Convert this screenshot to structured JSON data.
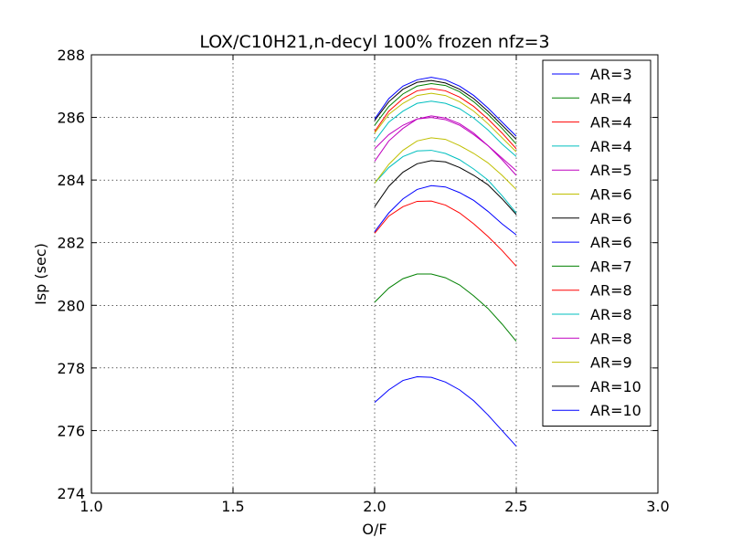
{
  "chart_data": {
    "type": "line",
    "title": "LOX/C10H21,n-decyl 100% frozen nfz=3",
    "xlabel": "O/F",
    "ylabel": "Isp (sec)",
    "xlim": [
      1.0,
      3.0
    ],
    "ylim": [
      274,
      288
    ],
    "xticks": [
      "1.0",
      "1.5",
      "2.0",
      "2.5",
      "3.0"
    ],
    "yticks": [
      "274",
      "276",
      "278",
      "280",
      "282",
      "284",
      "286",
      "288"
    ],
    "grid": true,
    "legend_position": "top-right",
    "x": [
      2.0,
      2.05,
      2.1,
      2.15,
      2.2,
      2.25,
      2.3,
      2.35,
      2.4,
      2.45,
      2.5
    ],
    "series": [
      {
        "name": "AR=3",
        "color": "#0000ff",
        "values": [
          276.9,
          277.3,
          277.6,
          277.72,
          277.7,
          277.55,
          277.3,
          276.95,
          276.5,
          276.0,
          275.5
        ]
      },
      {
        "name": "AR=4",
        "color": "#008000",
        "values": [
          280.1,
          280.55,
          280.85,
          281.0,
          281.0,
          280.88,
          280.65,
          280.3,
          279.9,
          279.4,
          278.85
        ]
      },
      {
        "name": "AR=4",
        "color": "#ff0000",
        "values": [
          282.3,
          282.85,
          283.15,
          283.32,
          283.33,
          283.2,
          282.95,
          282.6,
          282.2,
          281.75,
          281.25
        ]
      },
      {
        "name": "AR=4",
        "color": "#00bfbf",
        "values": [
          283.9,
          284.4,
          284.75,
          284.93,
          284.95,
          284.85,
          284.65,
          284.35,
          284.0,
          283.5,
          282.95
        ]
      },
      {
        "name": "AR=5",
        "color": "#bf00bf",
        "values": [
          284.6,
          285.25,
          285.65,
          285.95,
          286.05,
          285.98,
          285.8,
          285.5,
          285.1,
          284.65,
          284.15
        ]
      },
      {
        "name": "AR=6",
        "color": "#bfbf00",
        "values": [
          283.9,
          284.5,
          284.95,
          285.25,
          285.35,
          285.3,
          285.1,
          284.85,
          284.55,
          284.15,
          283.7
        ]
      },
      {
        "name": "AR=6",
        "color": "#000000",
        "values": [
          283.15,
          283.8,
          284.25,
          284.52,
          284.62,
          284.58,
          284.4,
          284.15,
          283.85,
          283.4,
          282.9
        ]
      },
      {
        "name": "AR=6",
        "color": "#0000ff",
        "values": [
          282.35,
          282.95,
          283.4,
          283.7,
          283.82,
          283.78,
          283.6,
          283.35,
          283.0,
          282.6,
          282.25
        ]
      },
      {
        "name": "AR=7",
        "color": "#008000",
        "values": [
          285.75,
          286.35,
          286.75,
          287.0,
          287.08,
          287.02,
          286.82,
          286.5,
          286.1,
          285.65,
          285.15
        ]
      },
      {
        "name": "AR=8",
        "color": "#ff0000",
        "values": [
          285.55,
          286.2,
          286.6,
          286.85,
          286.92,
          286.85,
          286.65,
          286.35,
          285.95,
          285.5,
          285.0
        ]
      },
      {
        "name": "AR=8",
        "color": "#00bfbf",
        "values": [
          285.25,
          285.85,
          286.2,
          286.45,
          286.52,
          286.45,
          286.28,
          285.98,
          285.6,
          285.15,
          284.75
        ]
      },
      {
        "name": "AR=8",
        "color": "#bf00bf",
        "values": [
          285.0,
          285.45,
          285.75,
          285.95,
          286.0,
          285.93,
          285.75,
          285.45,
          285.1,
          284.7,
          284.3
        ]
      },
      {
        "name": "AR=9",
        "color": "#bfbf00",
        "values": [
          285.5,
          286.1,
          286.45,
          286.7,
          286.77,
          286.7,
          286.5,
          286.2,
          285.8,
          285.35,
          284.9
        ]
      },
      {
        "name": "AR=10",
        "color": "#000000",
        "values": [
          285.9,
          286.5,
          286.9,
          287.12,
          287.18,
          287.1,
          286.9,
          286.6,
          286.2,
          285.75,
          285.3
        ]
      },
      {
        "name": "AR=10",
        "color": "#0000ff",
        "values": [
          285.95,
          286.6,
          287.0,
          287.2,
          287.28,
          287.2,
          287.0,
          286.7,
          286.3,
          285.85,
          285.4
        ]
      }
    ]
  }
}
